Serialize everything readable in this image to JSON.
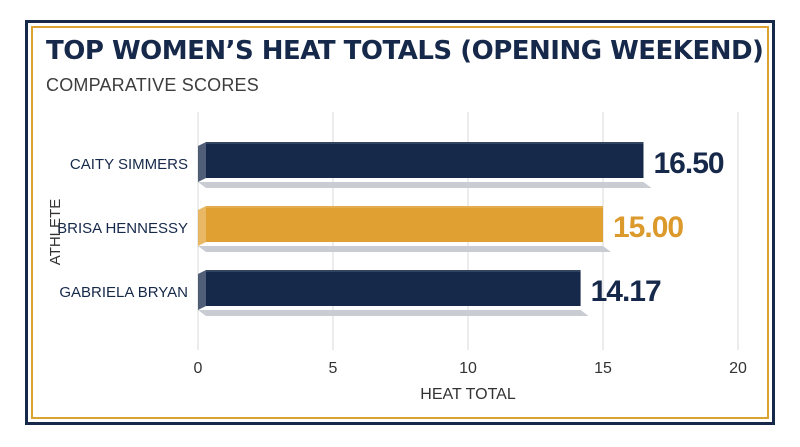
{
  "chart_data": {
    "type": "bar",
    "orientation": "horizontal",
    "title": "TOP WOMEN’S HEAT TOTALS (OPENING WEEKEND)",
    "subtitle": "COMPARATIVE SCORES",
    "xlabel": "HEAT TOTAL",
    "ylabel": "ATHLETE",
    "xlim": [
      0,
      20
    ],
    "xticks": [
      "0",
      "5",
      "10",
      "15",
      "20"
    ],
    "xtick_values": [
      0,
      5,
      10,
      15,
      20
    ],
    "grid": true,
    "categories": [
      "CAITY SIMMERS",
      "BRISA HENNESSY",
      "GABRIELA BRYAN"
    ],
    "values": [
      16.5,
      15.0,
      14.17
    ],
    "value_labels": [
      "16.50",
      "15.00",
      "14.17"
    ],
    "colors": [
      "#16294a",
      "#e0a032",
      "#16294a"
    ],
    "label_colors": [
      "#16294a",
      "#dc9a2c",
      "#16294a"
    ]
  }
}
